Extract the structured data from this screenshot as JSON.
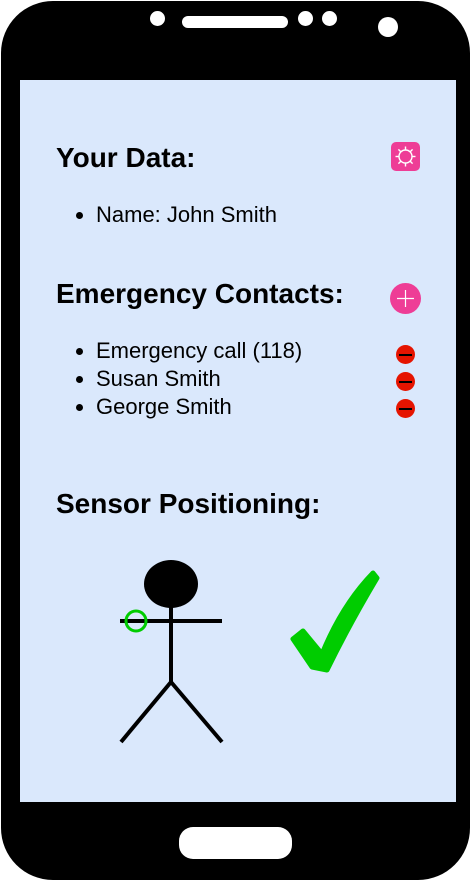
{
  "your_data": {
    "title": "Your Data:",
    "settings_icon": "gear-icon",
    "items": [
      {
        "label": "Name: John Smith"
      }
    ]
  },
  "emergency_contacts": {
    "title": "Emergency Contacts:",
    "add_icon": "plus-icon",
    "remove_icon": "minus-icon",
    "contacts": [
      {
        "name": "Emergency call (118)"
      },
      {
        "name": "Susan Smith"
      },
      {
        "name": "George Smith"
      }
    ]
  },
  "sensor_positioning": {
    "title": "Sensor Positioning:",
    "figure_icon": "stick-figure-icon",
    "sensor_icon": "sensor-marker-icon",
    "status_icon": "checkmark-icon"
  },
  "colors": {
    "screen_background": "#dae8fc",
    "accent_pink": "#ee3d96",
    "remove_red": "#e51400",
    "sensor_ok_green": "#00cc00",
    "phone_body": "#000000"
  }
}
